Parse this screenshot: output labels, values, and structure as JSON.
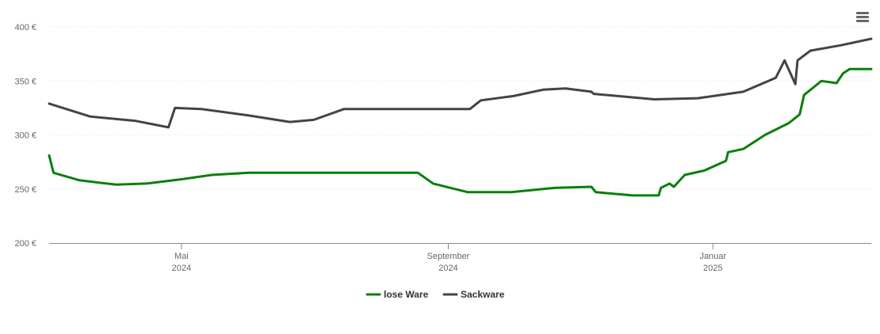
{
  "menu": {
    "icon": "hamburger-menu-icon"
  },
  "chart_data": {
    "type": "line",
    "title": "",
    "xlabel": "",
    "ylabel": "",
    "ylim": [
      200,
      400
    ],
    "y_ticks": [
      200,
      250,
      300,
      350,
      400
    ],
    "y_tick_labels": [
      "200 €",
      "250 €",
      "300 €",
      "350 €",
      "400 €"
    ],
    "xlim": [
      "2024-03-01",
      "2025-03-15"
    ],
    "x_ticks": [
      {
        "date": "2024-05-01",
        "line1": "Mai",
        "line2": "2024"
      },
      {
        "date": "2024-09-01",
        "line1": "September",
        "line2": "2024"
      },
      {
        "date": "2025-01-01",
        "line1": "Januar",
        "line2": "2025"
      }
    ],
    "grid": true,
    "legend": "bottom-center",
    "series": [
      {
        "name": "lose Ware",
        "color": "#0a7f0a",
        "points": [
          [
            "2024-03-01",
            281
          ],
          [
            "2024-03-03",
            265
          ],
          [
            "2024-03-15",
            258
          ],
          [
            "2024-04-01",
            254
          ],
          [
            "2024-04-15",
            255
          ],
          [
            "2024-05-01",
            259
          ],
          [
            "2024-05-15",
            263
          ],
          [
            "2024-06-01",
            265
          ],
          [
            "2024-08-18",
            265
          ],
          [
            "2024-08-25",
            255
          ],
          [
            "2024-09-10",
            247
          ],
          [
            "2024-09-30",
            247
          ],
          [
            "2024-10-20",
            251
          ],
          [
            "2024-11-06",
            252
          ],
          [
            "2024-11-08",
            247
          ],
          [
            "2024-11-25",
            244
          ],
          [
            "2024-12-07",
            244
          ],
          [
            "2024-12-08",
            251
          ],
          [
            "2024-12-10",
            253
          ],
          [
            "2024-12-12",
            255
          ],
          [
            "2024-12-14",
            252
          ],
          [
            "2024-12-19",
            263
          ],
          [
            "2024-12-28",
            267
          ],
          [
            "2025-01-07",
            276
          ],
          [
            "2025-01-08",
            284
          ],
          [
            "2025-01-15",
            287
          ],
          [
            "2025-01-25",
            300
          ],
          [
            "2025-02-05",
            311
          ],
          [
            "2025-02-10",
            319
          ],
          [
            "2025-02-12",
            337
          ],
          [
            "2025-02-20",
            350
          ],
          [
            "2025-02-27",
            348
          ],
          [
            "2025-03-02",
            357
          ],
          [
            "2025-03-05",
            361
          ],
          [
            "2025-03-15",
            361
          ]
        ]
      },
      {
        "name": "Sackware",
        "color": "#434348",
        "points": [
          [
            "2024-03-01",
            329
          ],
          [
            "2024-03-20",
            317
          ],
          [
            "2024-04-10",
            313
          ],
          [
            "2024-04-25",
            307
          ],
          [
            "2024-04-28",
            325
          ],
          [
            "2024-05-10",
            324
          ],
          [
            "2024-06-01",
            318
          ],
          [
            "2024-06-20",
            312
          ],
          [
            "2024-07-01",
            314
          ],
          [
            "2024-07-15",
            324
          ],
          [
            "2024-09-11",
            324
          ],
          [
            "2024-09-16",
            332
          ],
          [
            "2024-10-01",
            336
          ],
          [
            "2024-10-15",
            342
          ],
          [
            "2024-10-25",
            343
          ],
          [
            "2024-11-06",
            340
          ],
          [
            "2024-11-07",
            338
          ],
          [
            "2024-12-05",
            333
          ],
          [
            "2024-12-25",
            334
          ],
          [
            "2025-01-15",
            340
          ],
          [
            "2025-01-30",
            353
          ],
          [
            "2025-02-03",
            369
          ],
          [
            "2025-02-08",
            347
          ],
          [
            "2025-02-09",
            369
          ],
          [
            "2025-02-15",
            378
          ],
          [
            "2025-03-01",
            383
          ],
          [
            "2025-03-15",
            389
          ]
        ]
      }
    ]
  }
}
